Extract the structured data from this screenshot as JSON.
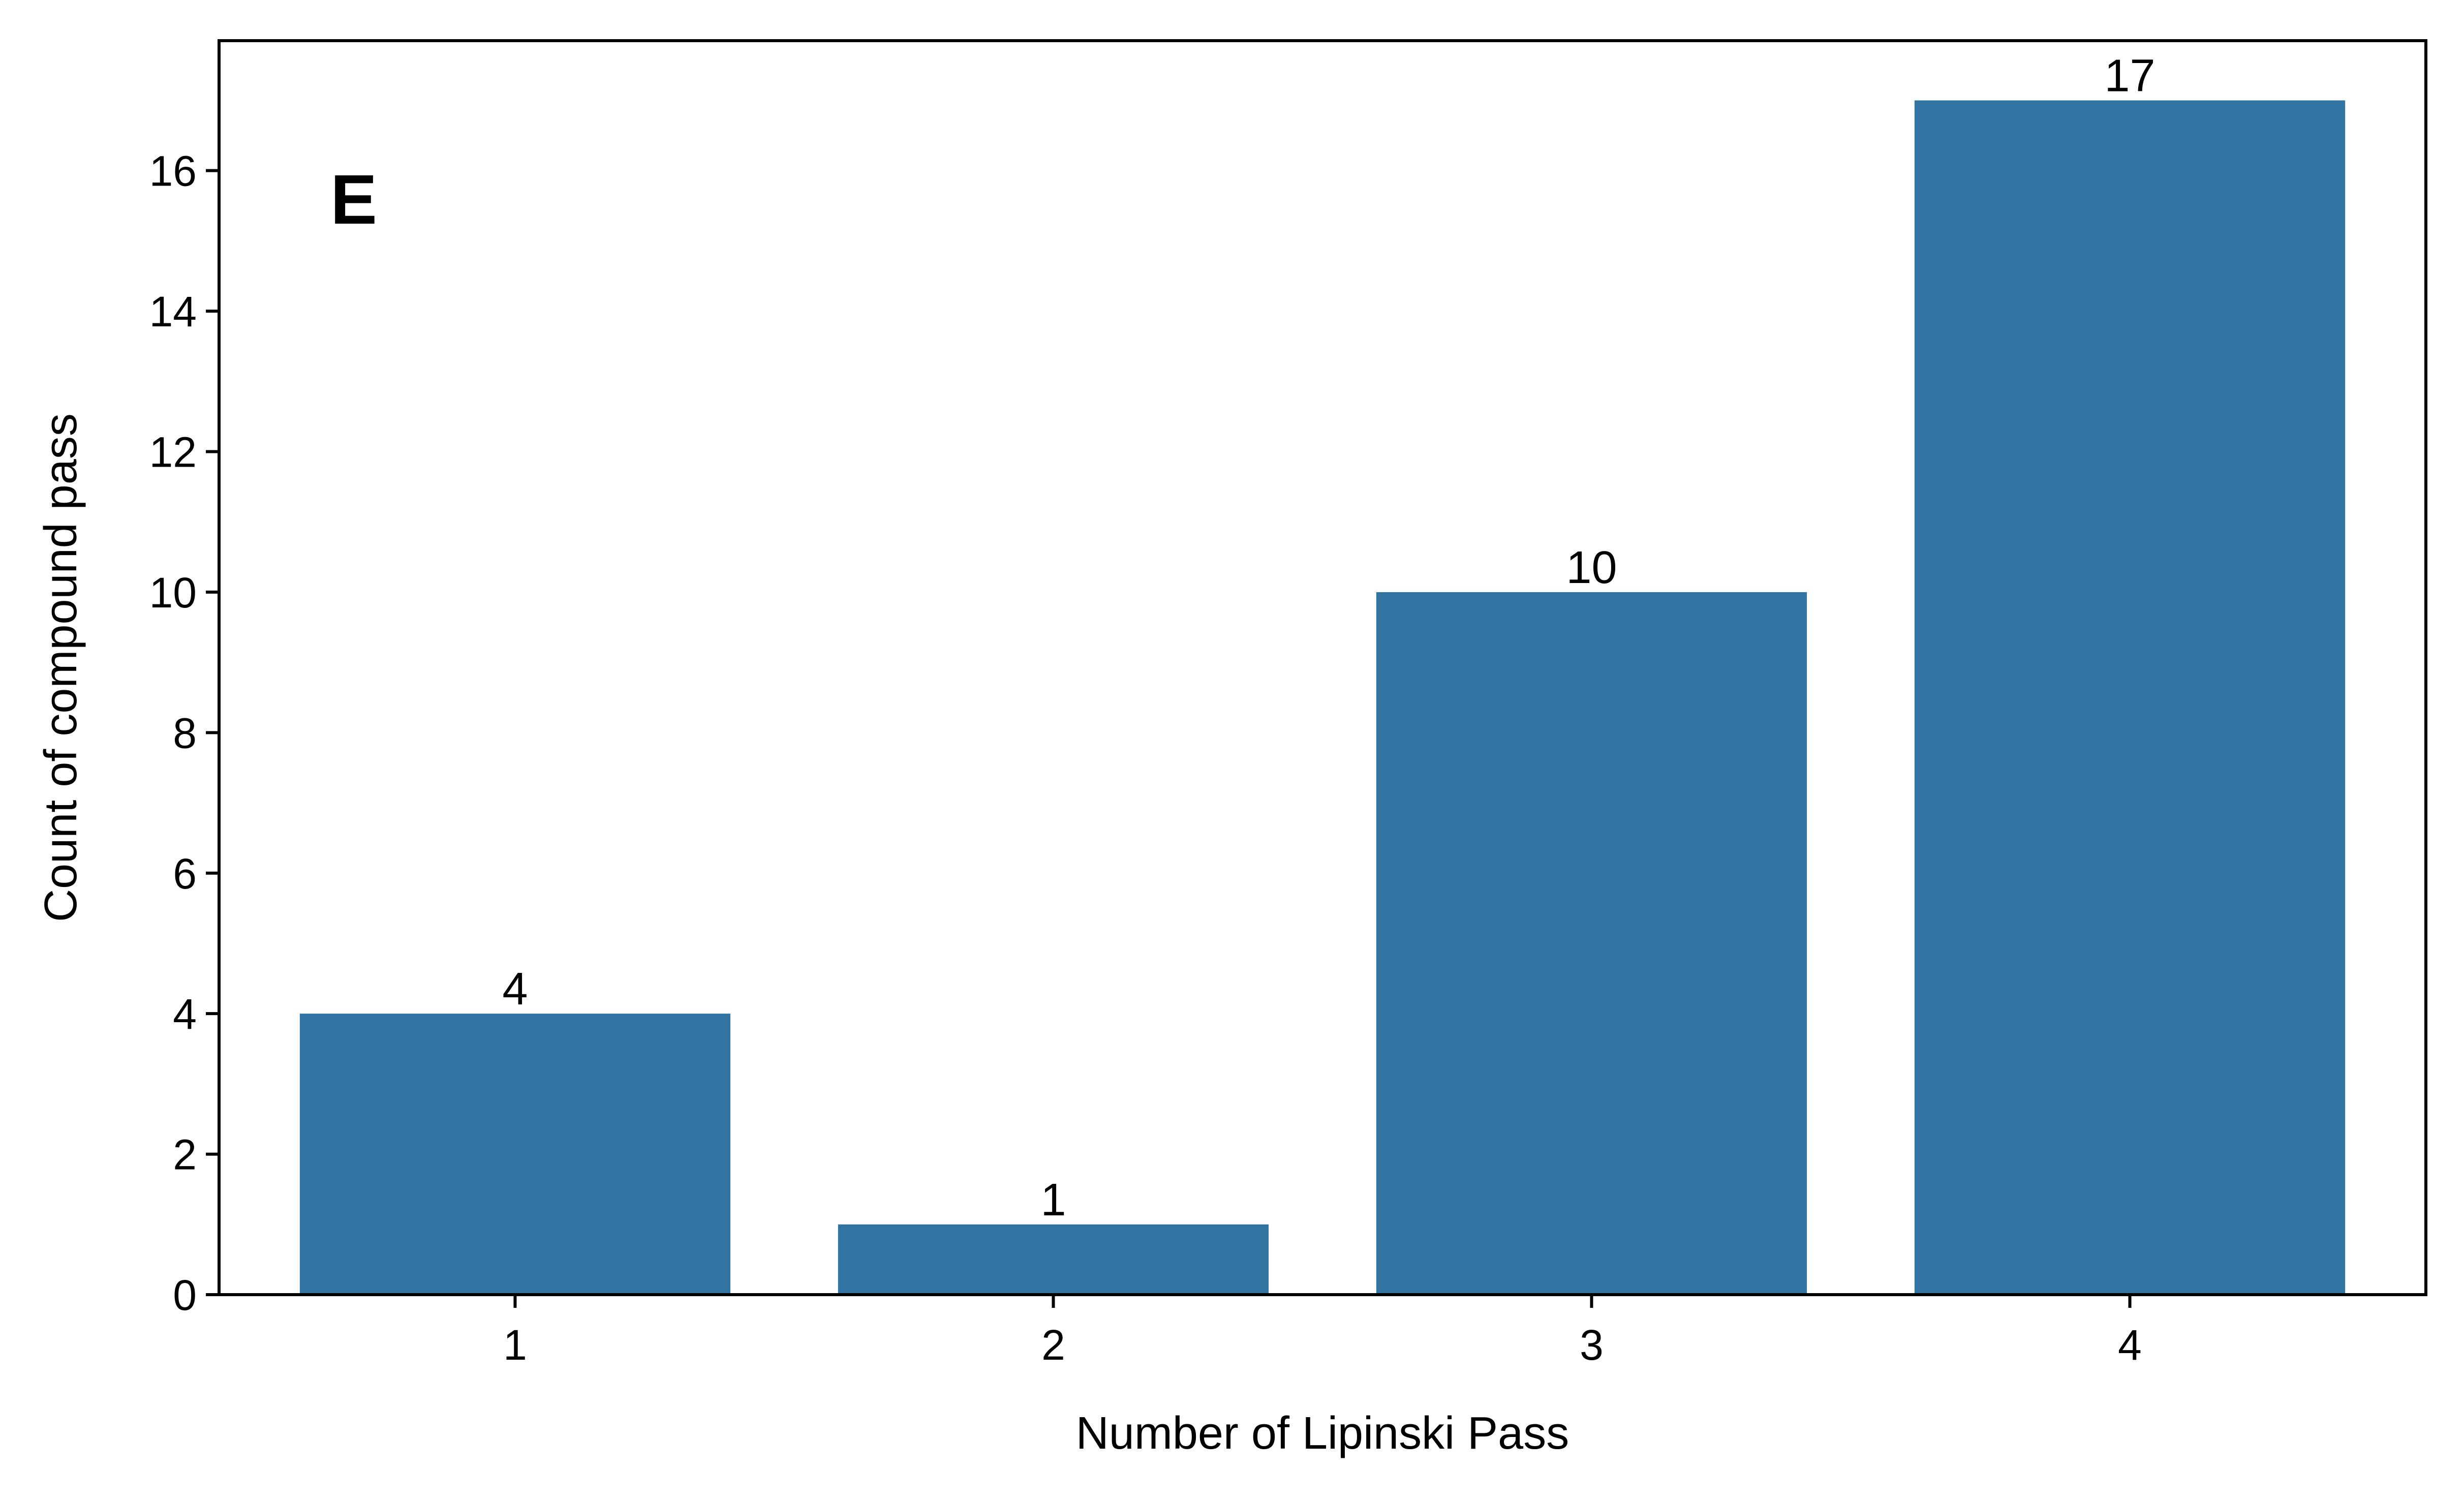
{
  "chart_data": {
    "type": "bar",
    "panel_label": "E",
    "categories": [
      "1",
      "2",
      "3",
      "4"
    ],
    "values": [
      4,
      1,
      10,
      17
    ],
    "data_labels": [
      "4",
      "1",
      "10",
      "17"
    ],
    "xlabel": "Number of Lipinski Pass",
    "ylabel": "Count of compound pass",
    "ylim": [
      0,
      17.85
    ],
    "yticks": [
      0,
      2,
      4,
      6,
      8,
      10,
      12,
      14,
      16
    ],
    "grid": false,
    "bar_color": "#3274a1"
  }
}
